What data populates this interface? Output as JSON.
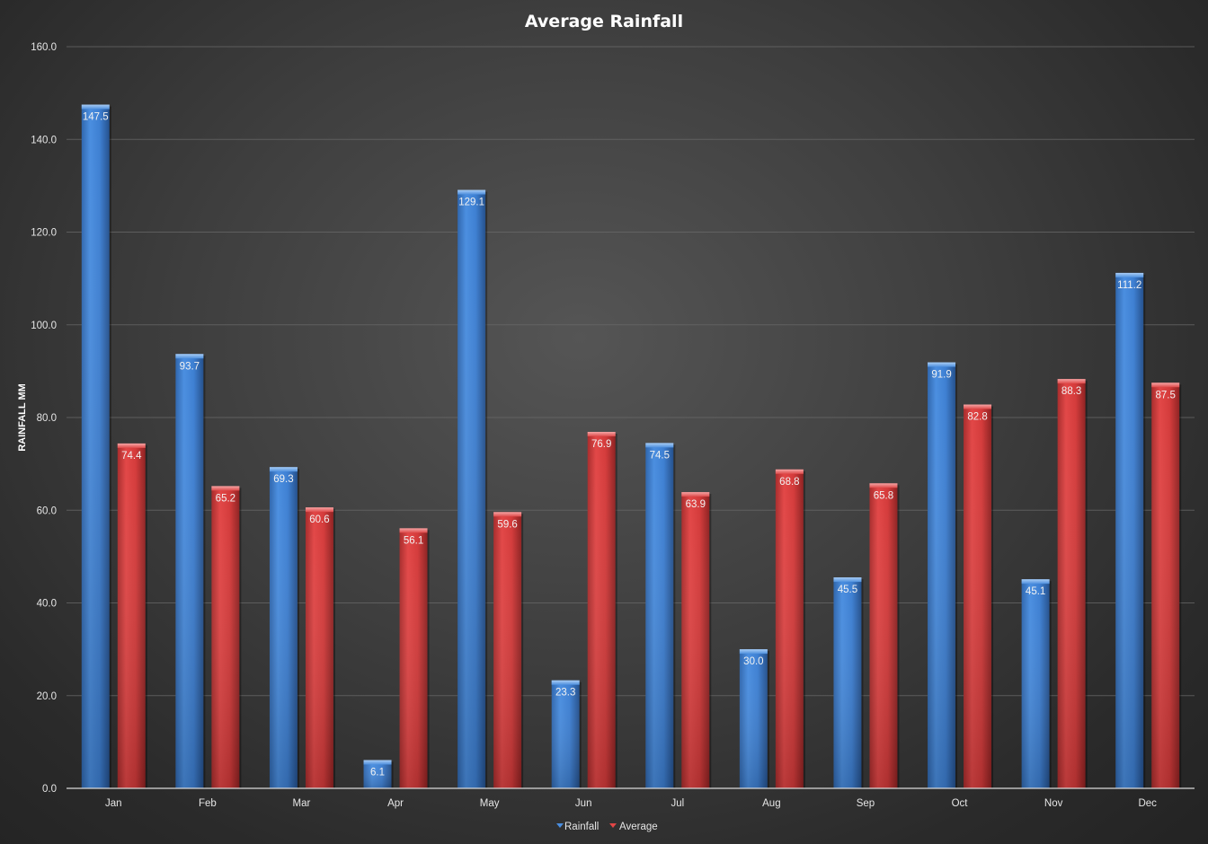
{
  "chart_data": {
    "type": "bar",
    "title": "Average Rainfall",
    "xlabel": "",
    "ylabel": "RAINFALL MM",
    "ylim": [
      0,
      160
    ],
    "yticks": [
      "0.0",
      "20.0",
      "40.0",
      "60.0",
      "80.0",
      "100.0",
      "120.0",
      "140.0",
      "160.0"
    ],
    "grid": true,
    "legend_position": "bottom",
    "categories": [
      "Jan",
      "Feb",
      "Mar",
      "Apr",
      "May",
      "Jun",
      "Jul",
      "Aug",
      "Sep",
      "Oct",
      "Nov",
      "Dec"
    ],
    "series": [
      {
        "name": "Rainfall",
        "color": "#3f82d6",
        "values": [
          147.5,
          93.7,
          69.3,
          6.1,
          129.1,
          23.3,
          74.5,
          30.0,
          45.5,
          91.9,
          45.1,
          111.2
        ],
        "labels": [
          "147.5",
          "93.7",
          "69.3",
          "6.1",
          "129.1",
          "23.3",
          "74.5",
          "30.0",
          "45.5",
          "91.9",
          "45.1",
          "111.2"
        ]
      },
      {
        "name": "Average",
        "color": "#d63d3d",
        "values": [
          74.4,
          65.2,
          60.6,
          56.1,
          59.6,
          76.9,
          63.9,
          68.8,
          65.8,
          82.8,
          88.3,
          87.5
        ],
        "labels": [
          "74.4",
          "65.2",
          "60.6",
          "56.1",
          "59.6",
          "76.9",
          "63.9",
          "68.8",
          "65.8",
          "82.8",
          "88.3",
          "87.5"
        ]
      }
    ]
  }
}
